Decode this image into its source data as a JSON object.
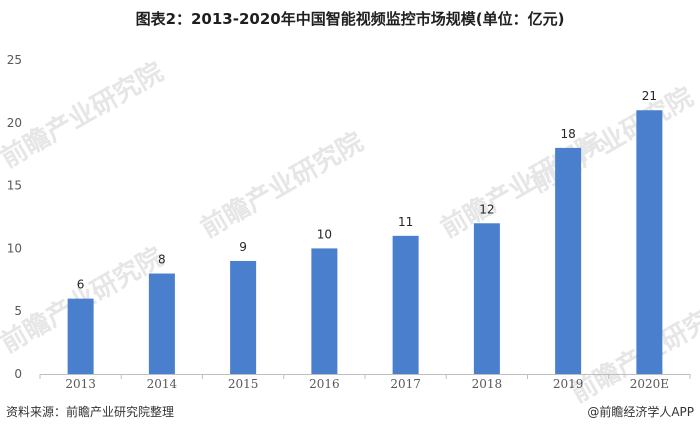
{
  "header": {
    "title": "图表2：2013-2020年中国智能视频监控市场规模(单位：亿元)"
  },
  "footer": {
    "source": "资料来源：前瞻产业研究院整理",
    "brand": "@前瞻经济学人APP"
  },
  "watermark": {
    "text": "前瞻产业研究院"
  },
  "colors": {
    "bar": "#4a7fce",
    "axis": "#bfbfbf",
    "tick_text": "#595959",
    "label_text": "#262626"
  },
  "chart_data": {
    "type": "bar",
    "categories": [
      "2013",
      "2014",
      "2015",
      "2016",
      "2017",
      "2018",
      "2019",
      "2020E"
    ],
    "series": [
      {
        "values": [
          6,
          8,
          9,
          10,
          11,
          12,
          18,
          21
        ]
      }
    ],
    "data_labels": [
      "6",
      "8",
      "9",
      "10",
      "11",
      "12",
      "18",
      "21"
    ],
    "ylim": [
      0,
      25
    ],
    "yticks": [
      0,
      5,
      10,
      15,
      20,
      25
    ],
    "title": "图表2：2013-2020年中国智能视频监控市场规模(单位：亿元)",
    "xlabel": "",
    "ylabel": "",
    "grid": false,
    "legend": "none"
  }
}
